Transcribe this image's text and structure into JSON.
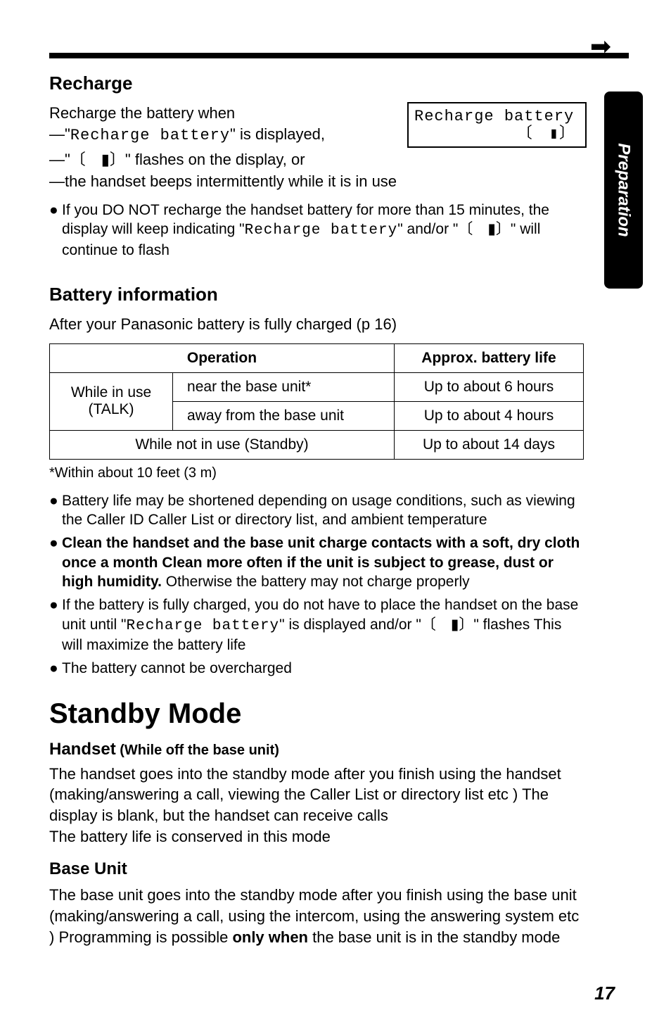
{
  "arrow_glyph": "➡",
  "side_tab": "Preparation",
  "display_box": {
    "line1": "Recharge battery",
    "line2": "〔　▮〕"
  },
  "recharge": {
    "heading": "Recharge",
    "intro": "Recharge the battery when",
    "dash1_pre": "—\"",
    "dash1_mono": "Recharge battery",
    "dash1_post": "\" is displayed,",
    "dash2_pre": "—\"〔　▮〕\" flashes on the display, or",
    "dash3": "—the handset beeps intermittently while it is in use",
    "bullet_pre": "If you DO NOT recharge the handset battery for more than 15 minutes, the display will keep indicating \"",
    "bullet_mono": "Recharge battery",
    "bullet_post": "\" and/or \"〔　▮〕\" will continue to flash"
  },
  "battery": {
    "heading": "Battery information",
    "after": "After your Panasonic battery is fully charged (p  16)",
    "th1": "Operation",
    "th2": "Approx. battery life",
    "r1c1": "While in use\n(TALK)",
    "r1c2a": "near the base unit*",
    "r1c3a": "Up to about 6 hours",
    "r1c2b": "away from the base unit",
    "r1c3b": "Up to about 4 hours",
    "r2c1": "While not in use (Standby)",
    "r2c2": "Up to about 14 days",
    "footnote": "*Within about 10 feet (3 m)",
    "b1": "Battery life may be shortened depending on usage conditions, such as viewing the Caller ID Caller List or directory list, and ambient temperature",
    "b2a": "Clean the handset and the base unit charge contacts with a soft, dry cloth once a month  Clean more often if the unit is subject to grease, dust or high humidity.",
    "b2b": " Otherwise the battery may not charge properly",
    "b3_pre": "If the battery is fully charged, you do not have to place the handset on the base unit until \"",
    "b3_mono": "Recharge battery",
    "b3_post": "\" is displayed and/or \"〔　▮〕\" flashes  This will maximize the battery life",
    "b4": "The battery cannot be overcharged"
  },
  "standby": {
    "heading": "Standby Mode",
    "handset_heading": "Handset",
    "handset_paren": " (While off the base unit)",
    "handset_body": "The handset goes into the standby mode after you finish using the handset (making/answering a call, viewing the Caller List or directory list etc )  The display is blank, but the handset can receive calls\nThe battery life is conserved in this mode",
    "base_heading": "Base Unit",
    "base_body_pre": "The base unit goes into the standby mode after you finish using the base unit (making/answering a call, using the intercom, using the answering system etc )  Programming is possible ",
    "base_body_bold": "only when",
    "base_body_post": " the base unit is in the standby mode"
  },
  "page_number": "17"
}
